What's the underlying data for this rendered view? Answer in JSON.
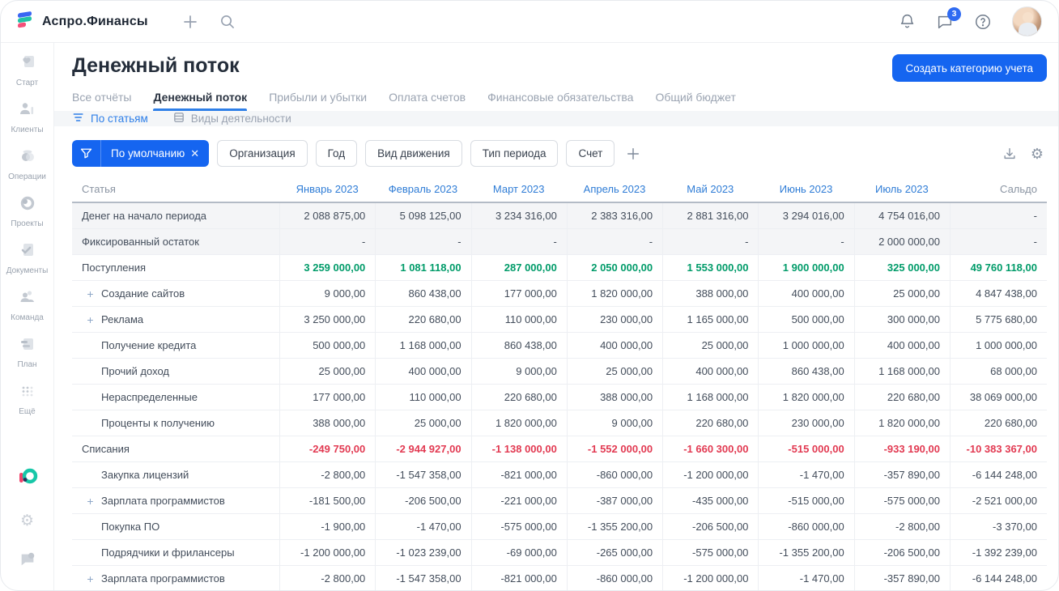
{
  "app": {
    "brand": "Аспро.Финансы",
    "notification_count": "3"
  },
  "sidebar": {
    "items": [
      {
        "label": "Старт",
        "icon": "start-icon"
      },
      {
        "label": "Клиенты",
        "icon": "clients-icon"
      },
      {
        "label": "Операции",
        "icon": "operations-icon"
      },
      {
        "label": "Проекты",
        "icon": "projects-icon"
      },
      {
        "label": "Документы",
        "icon": "documents-icon"
      },
      {
        "label": "Команда",
        "icon": "team-icon"
      },
      {
        "label": "План",
        "icon": "plan-icon"
      },
      {
        "label": "Ещё",
        "icon": "more-icon"
      }
    ]
  },
  "header": {
    "title": "Денежный поток",
    "create_button": "Создать категорию учета"
  },
  "tabs": [
    {
      "label": "Все отчёты",
      "active": false
    },
    {
      "label": "Денежный поток",
      "active": true
    },
    {
      "label": "Прибыли и убытки",
      "active": false
    },
    {
      "label": "Оплата счетов",
      "active": false
    },
    {
      "label": "Финансовые обязательства",
      "active": false
    },
    {
      "label": "Общий бюджет",
      "active": false
    }
  ],
  "subtabs": [
    {
      "label": "По статьям",
      "active": true,
      "icon": "sort-lines-icon"
    },
    {
      "label": "Виды деятельности",
      "active": false,
      "icon": "stack-icon"
    }
  ],
  "filters": {
    "active_chip": "По умолчанию",
    "pills": [
      "Организация",
      "Год",
      "Вид движения",
      "Тип периода",
      "Счет"
    ]
  },
  "table": {
    "first_col": "Статья",
    "months": [
      "Январь 2023",
      "Февраль 2023",
      "Март 2023",
      "Апрель 2023",
      "Май 2023",
      "Июнь 2023",
      "Июль 2023"
    ],
    "last_col": "Сальдо",
    "rows": [
      {
        "label": "Денег на начало периода",
        "type": "muted",
        "indent": 0,
        "plus": false,
        "values": [
          "2 088 875,00",
          "5 098 125,00",
          "3 234 316,00",
          "2 383 316,00",
          "2 881 316,00",
          "3 294 016,00",
          "4 754 016,00"
        ],
        "saldo": "-"
      },
      {
        "label": "Фиксированный остаток",
        "type": "muted",
        "indent": 0,
        "plus": false,
        "values": [
          "-",
          "-",
          "-",
          "-",
          "-",
          "-",
          "2 000 000,00"
        ],
        "saldo": "-"
      },
      {
        "label": "Поступления",
        "type": "income",
        "indent": 0,
        "plus": false,
        "values": [
          "3 259 000,00",
          "1 081 118,00",
          "287 000,00",
          "2 050 000,00",
          "1 553 000,00",
          "1 900 000,00",
          "325 000,00"
        ],
        "saldo": "49 760 118,00"
      },
      {
        "label": "Создание сайтов",
        "type": "",
        "indent": 1,
        "plus": true,
        "values": [
          "9 000,00",
          "860 438,00",
          "177 000,00",
          "1 820 000,00",
          "388 000,00",
          "400 000,00",
          "25 000,00"
        ],
        "saldo": "4 847 438,00"
      },
      {
        "label": "Реклама",
        "type": "",
        "indent": 1,
        "plus": true,
        "values": [
          "3 250 000,00",
          "220 680,00",
          "110 000,00",
          "230 000,00",
          "1 165 000,00",
          "500 000,00",
          "300 000,00"
        ],
        "saldo": "5 775 680,00"
      },
      {
        "label": "Получение кредита",
        "type": "",
        "indent": 1,
        "plus": false,
        "values": [
          "500 000,00",
          "1 168 000,00",
          "860 438,00",
          "400 000,00",
          "25 000,00",
          "1 000 000,00",
          "400 000,00"
        ],
        "saldo": "1 000 000,00"
      },
      {
        "label": "Прочий доход",
        "type": "",
        "indent": 1,
        "plus": false,
        "values": [
          "25 000,00",
          "400 000,00",
          "9 000,00",
          "25 000,00",
          "400 000,00",
          "860 438,00",
          "1 168 000,00"
        ],
        "saldo": "68 000,00"
      },
      {
        "label": "Нераспределенные",
        "type": "",
        "indent": 1,
        "plus": false,
        "values": [
          "177 000,00",
          "110 000,00",
          "220 680,00",
          "388 000,00",
          "1 168 000,00",
          "1 820 000,00",
          "220 680,00"
        ],
        "saldo": "38 069 000,00"
      },
      {
        "label": "Проценты к получению",
        "type": "",
        "indent": 1,
        "plus": false,
        "values": [
          "388 000,00",
          "25 000,00",
          "1 820 000,00",
          "9 000,00",
          "220 680,00",
          "230 000,00",
          "1 820 000,00"
        ],
        "saldo": "220 680,00"
      },
      {
        "label": "Списания",
        "type": "expense",
        "indent": 0,
        "plus": false,
        "values": [
          "-249 750,00",
          "-2 944 927,00",
          "-1 138 000,00",
          "-1 552 000,00",
          "-1 660 300,00",
          "-515 000,00",
          "-933 190,00"
        ],
        "saldo": "-10 383 367,00"
      },
      {
        "label": "Закупка лицензий",
        "type": "",
        "indent": 1,
        "plus": false,
        "values": [
          "-2 800,00",
          "-1 547 358,00",
          "-821 000,00",
          "-860 000,00",
          "-1 200 000,00",
          "-1 470,00",
          "-357 890,00"
        ],
        "saldo": "-6 144 248,00"
      },
      {
        "label": "Зарплата программистов",
        "type": "",
        "indent": 1,
        "plus": true,
        "values": [
          "-181 500,00",
          "-206 500,00",
          "-221 000,00",
          "-387 000,00",
          "-435 000,00",
          "-515 000,00",
          "-575 000,00"
        ],
        "saldo": "-2 521 000,00"
      },
      {
        "label": "Покупка ПО",
        "type": "",
        "indent": 1,
        "plus": false,
        "values": [
          "-1 900,00",
          "-1 470,00",
          "-575 000,00",
          "-1 355 200,00",
          "-206 500,00",
          "-860 000,00",
          "-2 800,00"
        ],
        "saldo": "-3 370,00"
      },
      {
        "label": "Подрядчики и фрилансеры",
        "type": "",
        "indent": 1,
        "plus": false,
        "values": [
          "-1 200 000,00",
          "-1 023 239,00",
          "-69 000,00",
          "-265 000,00",
          "-575 000,00",
          "-1 355 200,00",
          "-206 500,00"
        ],
        "saldo": "-1 392 239,00"
      },
      {
        "label": "Зарплата программистов",
        "type": "",
        "indent": 1,
        "plus": true,
        "values": [
          "-2 800,00",
          "-1 547 358,00",
          "-821 000,00",
          "-860 000,00",
          "-1 200 000,00",
          "-1 470,00",
          "-357 890,00"
        ],
        "saldo": "-6 144 248,00"
      }
    ]
  },
  "colors": {
    "accent_blue": "#1565f0",
    "link_blue": "#2e7cd6",
    "income_green": "#009b69",
    "expense_red": "#e23a52"
  }
}
